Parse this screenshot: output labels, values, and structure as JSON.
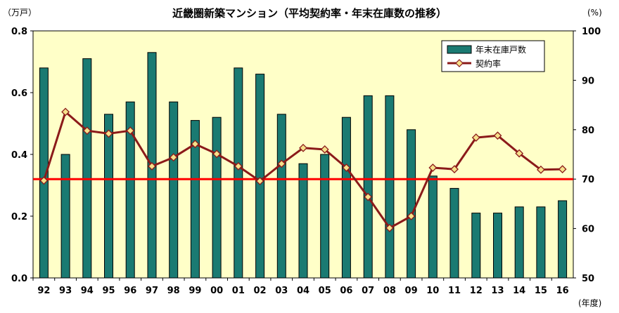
{
  "chart_data": {
    "type": "bar",
    "title": "近畿圏新築マンション（平均契約率・年末在庫数の推移）",
    "left_unit": "（万戸）",
    "right_unit": "(%)",
    "x_unit": "(年度)",
    "categories": [
      "92",
      "93",
      "94",
      "95",
      "96",
      "97",
      "98",
      "99",
      "00",
      "01",
      "02",
      "03",
      "04",
      "05",
      "06",
      "07",
      "08",
      "09",
      "10",
      "11",
      "12",
      "13",
      "14",
      "15",
      "16"
    ],
    "y_left": {
      "min": 0,
      "max": 0.8,
      "ticks": [
        "0.0",
        "0.2",
        "0.4",
        "0.6",
        "0.8"
      ]
    },
    "y_right": {
      "min": 50,
      "max": 100,
      "ticks": [
        "50",
        "60",
        "70",
        "80",
        "90",
        "100"
      ]
    },
    "series": [
      {
        "name": "年末在庫戸数",
        "kind": "bar",
        "axis": "left",
        "color": "#1a7a72",
        "values": [
          0.68,
          0.4,
          0.71,
          0.53,
          0.57,
          0.73,
          0.57,
          0.51,
          0.52,
          0.68,
          0.66,
          0.53,
          0.37,
          0.4,
          0.52,
          0.59,
          0.59,
          0.48,
          0.33,
          0.29,
          0.21,
          0.21,
          0.23,
          0.23,
          0.25
        ]
      },
      {
        "name": "契約率",
        "kind": "line",
        "axis": "right",
        "color": "#8b1a1a",
        "marker_fill": "#f5e08a",
        "values": [
          69.7,
          83.6,
          79.8,
          79.2,
          79.8,
          72.6,
          74.4,
          77.1,
          75.1,
          72.6,
          69.6,
          73.1,
          76.3,
          76.0,
          72.3,
          66.4,
          60.1,
          62.5,
          72.3,
          72.0,
          78.4,
          78.8,
          75.2,
          71.9,
          72.0
        ]
      }
    ],
    "reference_line": {
      "axis": "right",
      "value": 70,
      "color": "#ff0000"
    },
    "legend_position": "top-right",
    "plot_background": "#ffffc8",
    "grid": false
  }
}
